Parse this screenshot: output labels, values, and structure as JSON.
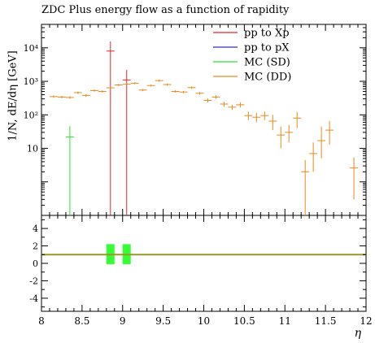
{
  "chart_data": {
    "type": "scatter",
    "title": "ZDC Plus energy flow as a function of rapidity",
    "xlabel": "η",
    "ylabel": "1/N, dE/dη [GeV]",
    "xlim": [
      8,
      12
    ],
    "ylim": [
      0.1,
      50000
    ],
    "yscale": "log",
    "ratio_ylim": [
      -5.5,
      5.5
    ],
    "grid": false,
    "legend_position": "top-right",
    "x_ticks": [
      "8",
      "8.5",
      "9",
      "9.5",
      "10",
      "10.5",
      "11",
      "11.5",
      "12"
    ],
    "y_ticks": [
      "10",
      "10²",
      "10³",
      "10⁴"
    ],
    "ratio_ticks": [
      "4",
      "2",
      "0",
      "-2",
      "-4"
    ],
    "series": [
      {
        "name": "pp to Xp",
        "color": "#e8282b",
        "x": [
          8.85,
          9.05
        ],
        "y": [
          8000,
          1100
        ],
        "yerr_low": [
          8000,
          1100
        ],
        "yerr_high": [
          7500,
          1100
        ],
        "xerr": [
          0.05,
          0.05
        ]
      },
      {
        "name": "pp to pX",
        "color": "#2a2ae8",
        "x": [],
        "y": []
      },
      {
        "name": "MC (SD)",
        "color": "#2fe02f",
        "x": [
          8.35
        ],
        "y": [
          22
        ],
        "yerr_low": [
          22
        ],
        "yerr_high": [
          24
        ],
        "xerr": [
          0.05
        ]
      },
      {
        "name": "MC (DD)",
        "color": "#e8891a",
        "x": [
          8.15,
          8.25,
          8.35,
          8.45,
          8.55,
          8.65,
          8.75,
          8.85,
          8.95,
          9.05,
          9.15,
          9.25,
          9.35,
          9.45,
          9.55,
          9.65,
          9.75,
          9.85,
          9.95,
          10.05,
          10.15,
          10.25,
          10.35,
          10.45,
          10.55,
          10.65,
          10.75,
          10.85,
          10.95,
          11.05,
          11.15,
          11.25,
          11.35,
          11.45,
          11.55,
          11.85
        ],
        "y": [
          350,
          340,
          330,
          460,
          380,
          530,
          500,
          640,
          780,
          820,
          880,
          550,
          750,
          1050,
          800,
          500,
          480,
          650,
          440,
          270,
          340,
          210,
          170,
          200,
          95,
          85,
          95,
          65,
          25,
          30,
          80,
          2.0,
          7.0,
          17,
          35,
          2.6
        ],
        "yerr_low": [
          30,
          30,
          30,
          40,
          35,
          40,
          40,
          50,
          60,
          60,
          60,
          45,
          55,
          80,
          60,
          40,
          40,
          50,
          40,
          35,
          40,
          35,
          30,
          35,
          25,
          25,
          25,
          30,
          15,
          15,
          40,
          2.0,
          5.0,
          12,
          22,
          2.3
        ],
        "yerr_high": [
          30,
          30,
          30,
          40,
          35,
          40,
          40,
          50,
          60,
          60,
          60,
          45,
          55,
          80,
          60,
          40,
          40,
          50,
          40,
          35,
          40,
          35,
          30,
          35,
          30,
          30,
          30,
          35,
          20,
          20,
          40,
          2.5,
          8.0,
          28,
          30,
          2.8
        ],
        "xerr": [
          0.05,
          0.05,
          0.05,
          0.05,
          0.05,
          0.05,
          0.05,
          0.05,
          0.05,
          0.05,
          0.05,
          0.05,
          0.05,
          0.05,
          0.05,
          0.05,
          0.05,
          0.05,
          0.05,
          0.05,
          0.05,
          0.05,
          0.05,
          0.05,
          0.05,
          0.05,
          0.05,
          0.05,
          0.05,
          0.05,
          0.05,
          0.05,
          0.05,
          0.05,
          0.05,
          0.05
        ]
      }
    ],
    "ratio": {
      "line_value": 1,
      "line_color": "#999922",
      "band_color": "#33ff33",
      "bands": [
        {
          "x": 8.85,
          "low": -0.1,
          "high": 2.2
        },
        {
          "x": 9.05,
          "low": -0.1,
          "high": 2.2
        }
      ]
    }
  }
}
